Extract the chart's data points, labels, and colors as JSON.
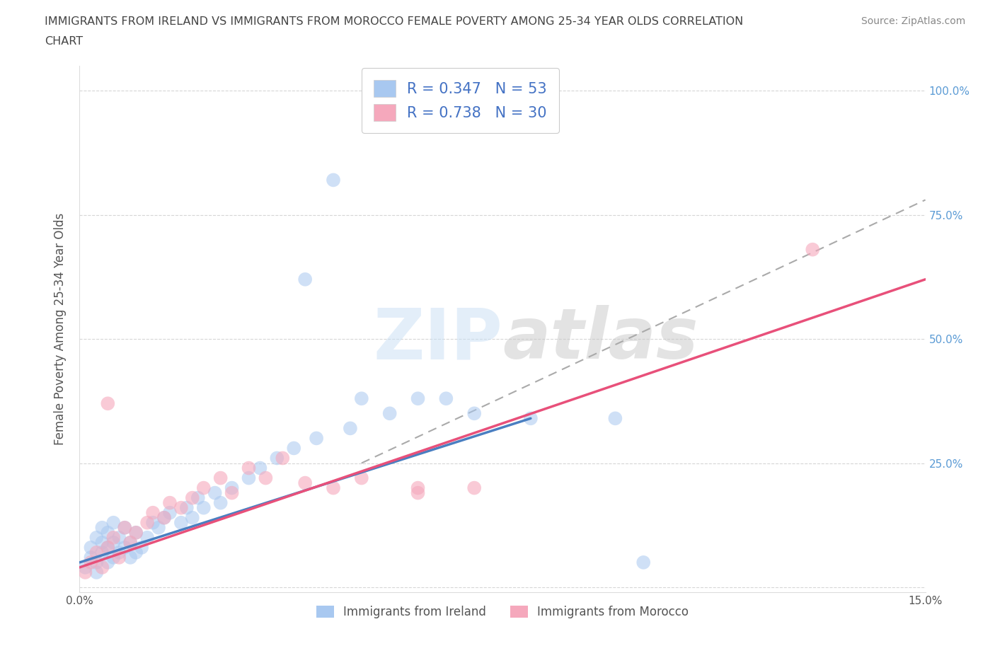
{
  "title_line1": "IMMIGRANTS FROM IRELAND VS IMMIGRANTS FROM MOROCCO FEMALE POVERTY AMONG 25-34 YEAR OLDS CORRELATION",
  "title_line2": "CHART",
  "source": "Source: ZipAtlas.com",
  "ylabel": "Female Poverty Among 25-34 Year Olds",
  "xlim": [
    0.0,
    0.15
  ],
  "ylim": [
    -0.01,
    1.05
  ],
  "ireland_color": "#a8c8f0",
  "morocco_color": "#f5a8bc",
  "ireland_line_color": "#4a7fc1",
  "morocco_line_color": "#e8507a",
  "dash_color": "#aaaaaa",
  "ireland_R": 0.347,
  "ireland_N": 53,
  "morocco_R": 0.738,
  "morocco_N": 30,
  "watermark": "ZIPatlas",
  "right_ytick_color": "#5b9bd5",
  "ireland_scatter_x": [
    0.001,
    0.002,
    0.002,
    0.003,
    0.003,
    0.003,
    0.004,
    0.004,
    0.004,
    0.005,
    0.005,
    0.005,
    0.006,
    0.006,
    0.006,
    0.007,
    0.007,
    0.008,
    0.008,
    0.009,
    0.009,
    0.01,
    0.01,
    0.011,
    0.012,
    0.013,
    0.014,
    0.015,
    0.016,
    0.018,
    0.019,
    0.02,
    0.021,
    0.022,
    0.024,
    0.025,
    0.027,
    0.03,
    0.032,
    0.035,
    0.038,
    0.04,
    0.042,
    0.045,
    0.048,
    0.05,
    0.055,
    0.06,
    0.065,
    0.07,
    0.08,
    0.095,
    0.1
  ],
  "ireland_scatter_y": [
    0.04,
    0.06,
    0.08,
    0.03,
    0.05,
    0.1,
    0.07,
    0.09,
    0.12,
    0.05,
    0.08,
    0.11,
    0.06,
    0.09,
    0.13,
    0.07,
    0.1,
    0.08,
    0.12,
    0.06,
    0.09,
    0.07,
    0.11,
    0.08,
    0.1,
    0.13,
    0.12,
    0.14,
    0.15,
    0.13,
    0.16,
    0.14,
    0.18,
    0.16,
    0.19,
    0.17,
    0.2,
    0.22,
    0.24,
    0.26,
    0.28,
    0.62,
    0.3,
    0.82,
    0.32,
    0.38,
    0.35,
    0.38,
    0.38,
    0.35,
    0.34,
    0.34,
    0.05
  ],
  "morocco_scatter_x": [
    0.001,
    0.002,
    0.003,
    0.004,
    0.005,
    0.005,
    0.006,
    0.007,
    0.008,
    0.009,
    0.01,
    0.012,
    0.013,
    0.015,
    0.016,
    0.018,
    0.02,
    0.022,
    0.025,
    0.027,
    0.03,
    0.033,
    0.036,
    0.04,
    0.045,
    0.05,
    0.06,
    0.07,
    0.13,
    0.06
  ],
  "morocco_scatter_y": [
    0.03,
    0.05,
    0.07,
    0.04,
    0.08,
    0.37,
    0.1,
    0.06,
    0.12,
    0.09,
    0.11,
    0.13,
    0.15,
    0.14,
    0.17,
    0.16,
    0.18,
    0.2,
    0.22,
    0.19,
    0.24,
    0.22,
    0.26,
    0.21,
    0.2,
    0.22,
    0.19,
    0.2,
    0.68,
    0.2
  ],
  "ireland_line_x": [
    0.0,
    0.08
  ],
  "ireland_line_y": [
    0.05,
    0.34
  ],
  "morocco_line_x": [
    0.0,
    0.15
  ],
  "morocco_line_y": [
    0.04,
    0.62
  ],
  "dash_line_x": [
    0.05,
    0.15
  ],
  "dash_line_y": [
    0.25,
    0.78
  ]
}
